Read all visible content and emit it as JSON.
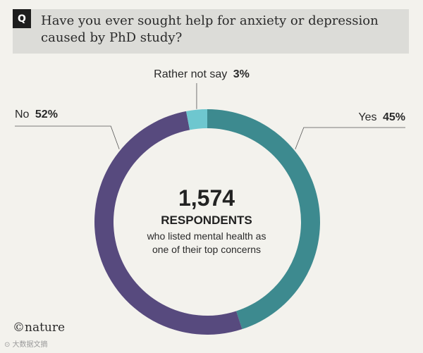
{
  "question": {
    "badge": "Q",
    "text": "Have you ever sought help for anxiety or depression caused by PhD study?"
  },
  "chart_data": {
    "type": "pie",
    "style": "donut",
    "slices": [
      {
        "label": "Yes",
        "value": 45,
        "value_label": "45%",
        "color": "#3d8a8f"
      },
      {
        "label": "No",
        "value": 52,
        "value_label": "52%",
        "color": "#574a7e"
      },
      {
        "label": "Rather not say",
        "value": 3,
        "value_label": "3%",
        "color": "#6ec7cf"
      }
    ],
    "center": {
      "count": "1,574",
      "unit": "RESPONDENTS",
      "line1": "who listed mental health as",
      "line2": "one of their top concerns"
    }
  },
  "footer": {
    "logo": "©nature",
    "watermark": "⊙ 大数据文摘"
  }
}
